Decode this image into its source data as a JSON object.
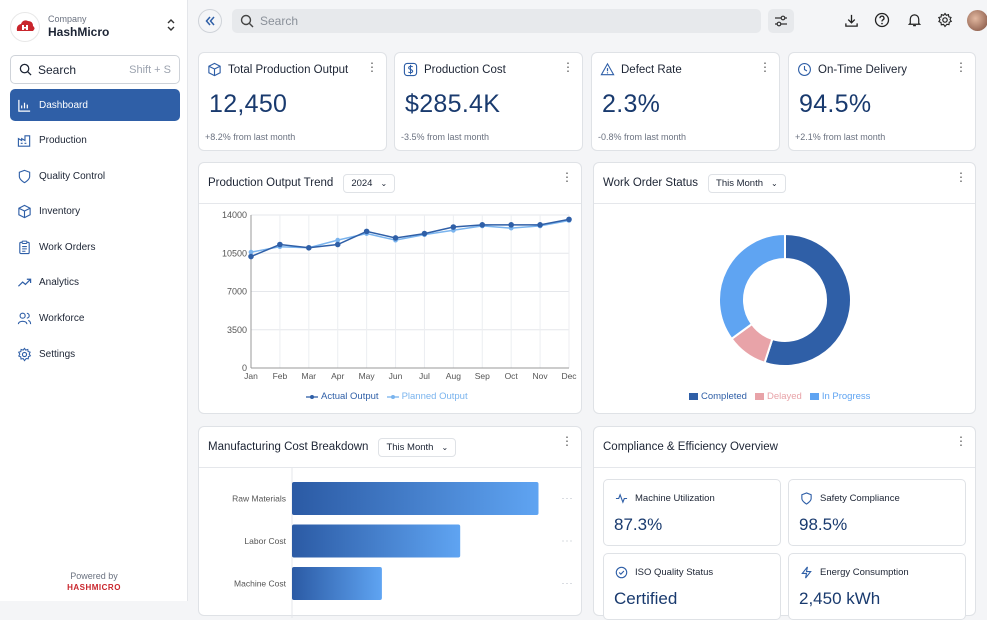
{
  "company": {
    "label": "Company",
    "name": "HashMicro",
    "logo_text": "HASHMICRO"
  },
  "sidebar": {
    "search": {
      "placeholder": "Search",
      "shortcut": "Shift + S"
    },
    "items": [
      {
        "label": "Dashboard",
        "icon": "dashboard-icon",
        "active": true
      },
      {
        "label": "Production",
        "icon": "factory-icon"
      },
      {
        "label": "Quality Control",
        "icon": "shield-icon"
      },
      {
        "label": "Inventory",
        "icon": "box-icon"
      },
      {
        "label": "Work Orders",
        "icon": "clipboard-icon"
      },
      {
        "label": "Analytics",
        "icon": "trend-icon"
      },
      {
        "label": "Workforce",
        "icon": "users-icon"
      },
      {
        "label": "Settings",
        "icon": "gear-icon"
      }
    ],
    "powered_by": "Powered by",
    "brand": "HASHMICRO"
  },
  "topbar": {
    "search_placeholder": "Search"
  },
  "kpis": [
    {
      "title": "Total Production Output",
      "value": "12,450",
      "change": "+8.2% from last month",
      "icon": "cube-icon"
    },
    {
      "title": "Production Cost",
      "value": "$285.4K",
      "change": "-3.5% from last month",
      "icon": "dollar-icon"
    },
    {
      "title": "Defect Rate",
      "value": "2.3%",
      "change": "-0.8% from last month",
      "icon": "warning-icon"
    },
    {
      "title": "On-Time Delivery",
      "value": "94.5%",
      "change": "+2.1% from last month",
      "icon": "clock-icon"
    }
  ],
  "trend": {
    "title": "Production Output Trend",
    "filter": "2024"
  },
  "work_order": {
    "title": "Work Order Status",
    "filter": "This Month"
  },
  "cost": {
    "title": "Manufacturing Cost Breakdown",
    "filter": "This Month"
  },
  "compliance": {
    "title": "Compliance & Efficiency Overview",
    "items": [
      {
        "label": "Machine Utilization",
        "value": "87.3%",
        "icon": "pulse-icon"
      },
      {
        "label": "Safety Compliance",
        "value": "98.5%",
        "icon": "shield-icon"
      },
      {
        "label": "ISO Quality Status",
        "value": "Certified",
        "icon": "check-circle-icon"
      },
      {
        "label": "Energy Consumption",
        "value": "2,450 kWh",
        "icon": "bolt-icon"
      }
    ]
  },
  "chart_data": [
    {
      "type": "line",
      "title": "Production Output Trend",
      "x": [
        "Jan",
        "Feb",
        "Mar",
        "Apr",
        "May",
        "Jun",
        "Jul",
        "Aug",
        "Sep",
        "Oct",
        "Nov",
        "Dec"
      ],
      "ylim": [
        0,
        14000
      ],
      "yticks": [
        0,
        3500,
        7000,
        10500,
        14000
      ],
      "grid": true,
      "legend": "bottom",
      "series": [
        {
          "name": "Actual Output",
          "values": [
            10200,
            11300,
            11000,
            11300,
            12500,
            11900,
            12300,
            12900,
            13100,
            13100,
            13100,
            13600
          ]
        },
        {
          "name": "Planned Output",
          "values": [
            10600,
            11100,
            11000,
            11700,
            12300,
            11700,
            12200,
            12600,
            13000,
            12800,
            13000,
            13500
          ]
        }
      ],
      "colors": [
        "#2f5fa7",
        "#7ab4ee"
      ]
    },
    {
      "type": "pie",
      "title": "Work Order Status",
      "labels": [
        "Completed",
        "Delayed",
        "In Progress"
      ],
      "values": [
        55,
        10,
        35
      ],
      "colors": [
        "#2f5fa7",
        "#e8a3a8",
        "#5fa4f2"
      ],
      "legend": "bottom"
    },
    {
      "type": "bar",
      "title": "Manufacturing Cost Breakdown",
      "orientation": "horizontal",
      "categories": [
        "Raw Materials",
        "Labor Cost",
        "Machine Cost"
      ],
      "values": [
        85,
        58,
        31
      ]
    }
  ]
}
